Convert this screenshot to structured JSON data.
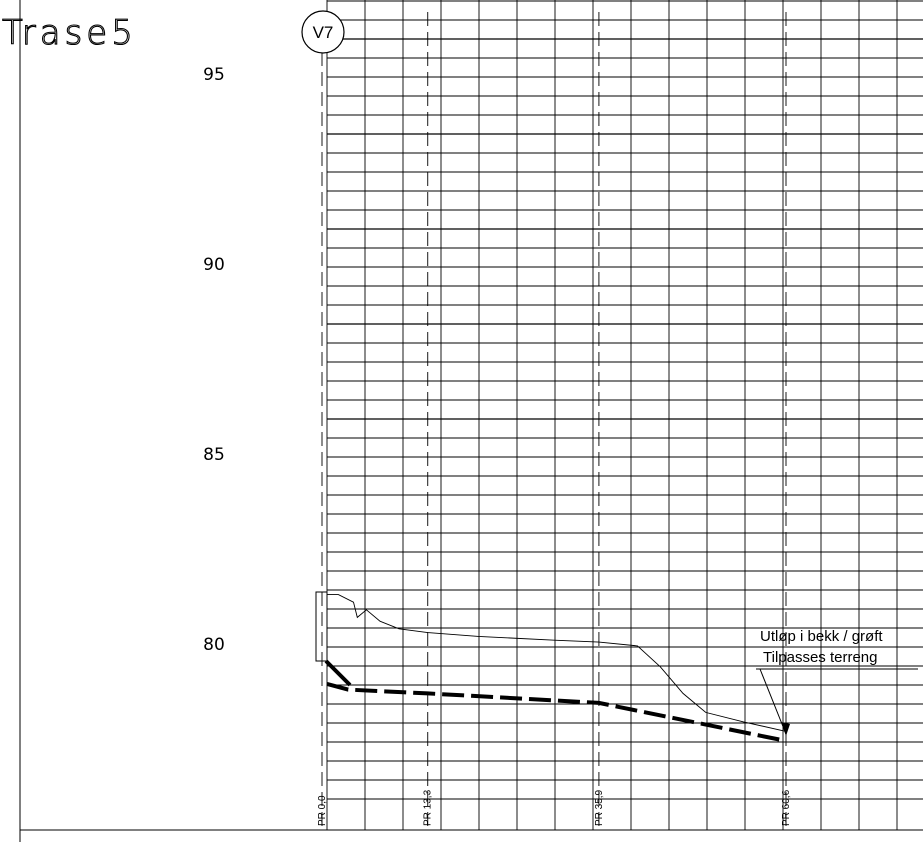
{
  "title": "Trase5",
  "node_label": "V7",
  "elevation_labels": [
    {
      "label": "95",
      "value": 95
    },
    {
      "label": "90",
      "value": 90
    },
    {
      "label": "85",
      "value": 85
    },
    {
      "label": "80",
      "value": 80
    }
  ],
  "profile_markers": [
    {
      "label": "PR 0,0",
      "distance": 0.0
    },
    {
      "label": "PR 13,3",
      "distance": 13.3
    },
    {
      "label": "PR 35,9",
      "distance": 35.9
    },
    {
      "label": "PR 60,6",
      "distance": 60.6
    }
  ],
  "annotation": {
    "line1": "Utløp i bekk / grøft",
    "line2": "Tilpasses terreng"
  },
  "terrain_profile": [
    [
      0.0,
      81.3
    ],
    [
      1.5,
      81.3
    ],
    [
      3.5,
      81.1
    ],
    [
      4.0,
      80.7
    ],
    [
      5.2,
      80.9
    ],
    [
      7.0,
      80.6
    ],
    [
      9.5,
      80.4
    ],
    [
      13.3,
      80.3
    ],
    [
      20.0,
      80.2
    ],
    [
      30.0,
      80.1
    ],
    [
      35.9,
      80.05
    ],
    [
      41.0,
      79.95
    ],
    [
      44.0,
      79.4
    ],
    [
      47.0,
      78.7
    ],
    [
      50.0,
      78.2
    ],
    [
      55.0,
      77.95
    ],
    [
      60.6,
      77.7
    ]
  ],
  "pipe_profile": [
    [
      0.0,
      78.95
    ],
    [
      2.8,
      78.8
    ],
    [
      13.3,
      78.7
    ],
    [
      35.9,
      78.45
    ],
    [
      60.6,
      77.45
    ]
  ],
  "colors": {
    "ink": "#000000",
    "background": "#ffffff"
  }
}
